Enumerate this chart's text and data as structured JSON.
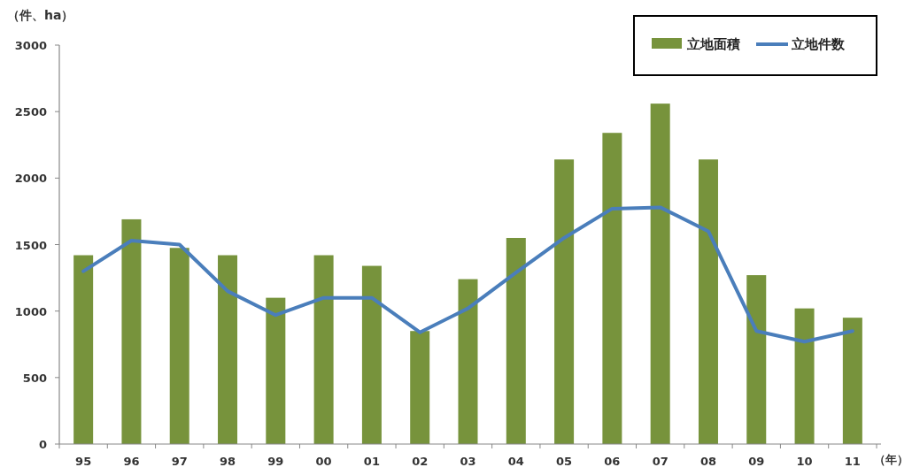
{
  "chart_data": {
    "type": "bar",
    "ylabel": "（件、ha）",
    "xlabel": "（年）",
    "categories": [
      "95",
      "96",
      "97",
      "98",
      "99",
      "00",
      "01",
      "02",
      "03",
      "04",
      "05",
      "06",
      "07",
      "08",
      "09",
      "10",
      "11"
    ],
    "series": [
      {
        "name": "立地面積",
        "color": "#77933c",
        "values": [
          1420,
          1690,
          1475,
          1420,
          1100,
          1420,
          1340,
          850,
          1240,
          1550,
          2140,
          2340,
          2560,
          2140,
          1270,
          1020,
          950
        ]
      },
      {
        "name": "立地件数",
        "type": "line",
        "color": "#4a7ebb",
        "values": [
          1300,
          1530,
          1500,
          1150,
          970,
          1100,
          1100,
          840,
          1020,
          1290,
          1550,
          1770,
          1780,
          1600,
          850,
          770,
          850
        ]
      }
    ],
    "ylim": [
      0,
      3000
    ],
    "yticks": [
      0,
      500,
      1000,
      1500,
      2000,
      2500,
      3000
    ],
    "legend": "top right"
  }
}
